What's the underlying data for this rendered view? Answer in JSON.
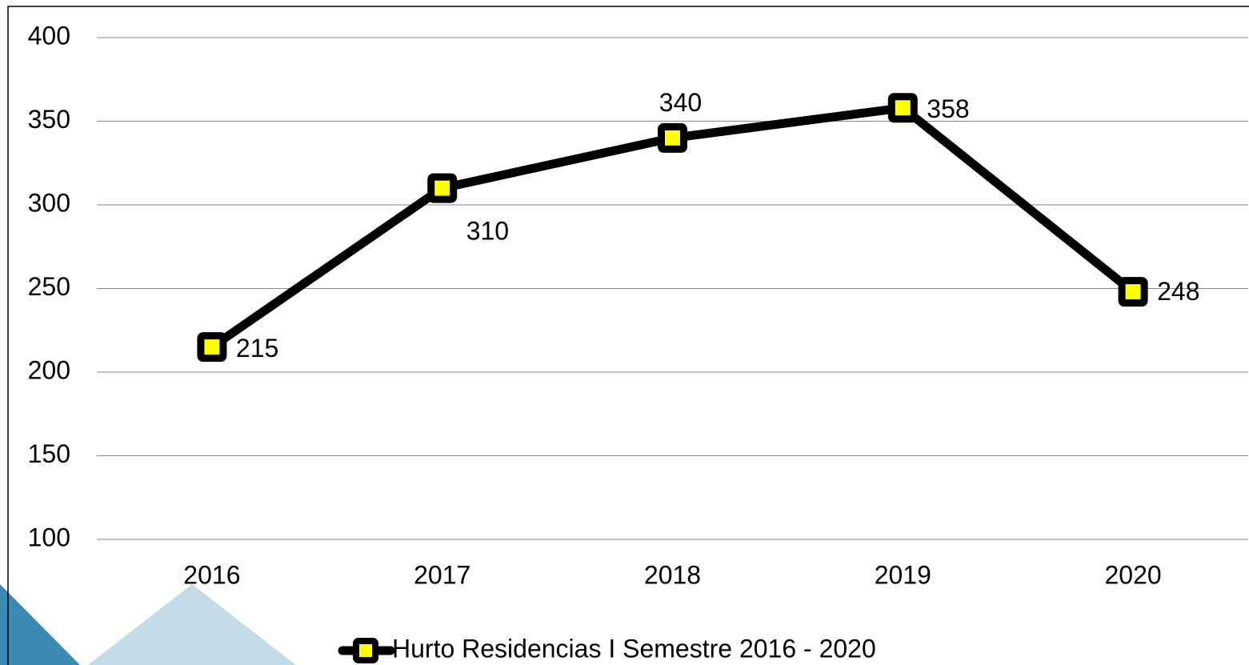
{
  "chart_data": {
    "type": "line",
    "categories": [
      "2016",
      "2017",
      "2018",
      "2019",
      "2020"
    ],
    "series": [
      {
        "name": "Hurto Residencias I Semestre 2016 - 2020",
        "color": "#000000",
        "marker_color": "#ffff00",
        "values": [
          215,
          310,
          340,
          358,
          248
        ]
      }
    ],
    "ylim": [
      100,
      400
    ],
    "yticks": [
      100,
      150,
      200,
      250,
      300,
      350,
      400
    ],
    "grid": true,
    "legend": "bottom"
  }
}
